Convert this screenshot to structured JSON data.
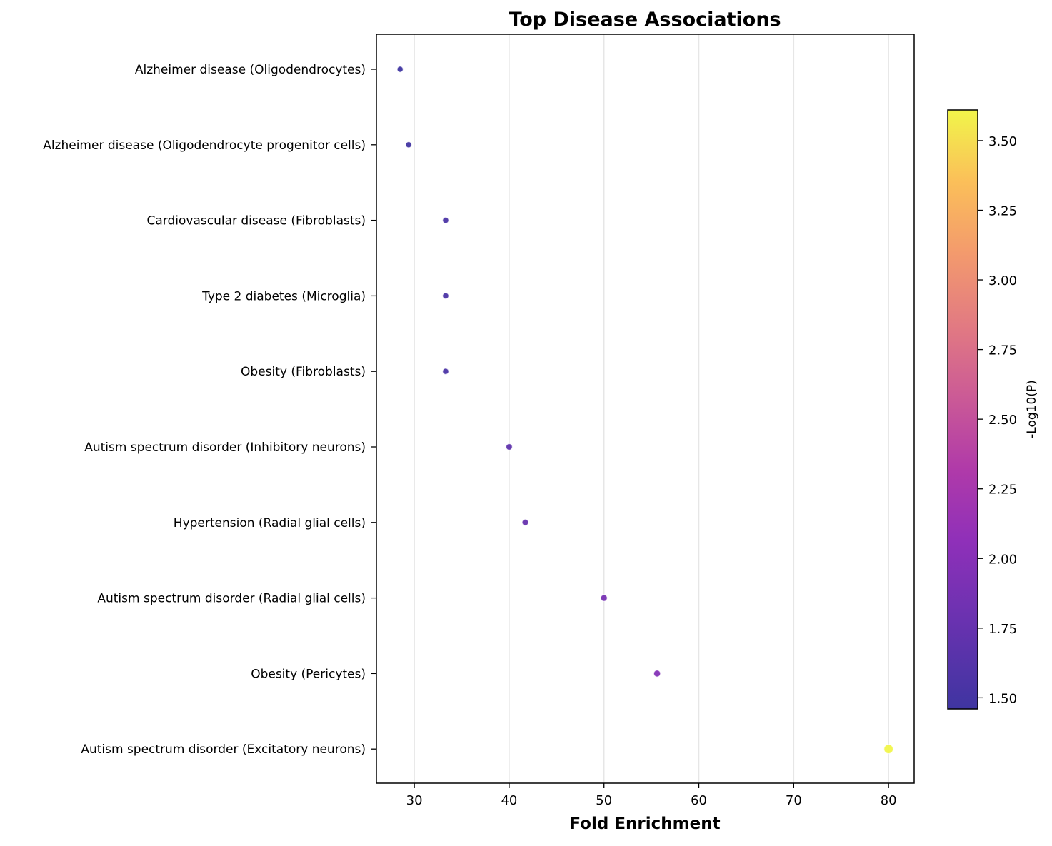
{
  "chart_data": {
    "type": "scatter",
    "title": "Top Disease Associations",
    "xlabel": "Fold Enrichment",
    "ylabel": "",
    "xlim": [
      26,
      82.7
    ],
    "xticks": [
      30,
      40,
      50,
      60,
      70,
      80
    ],
    "grid": "vertical",
    "colorbar": {
      "label": "-Log10(P)",
      "colormap": "plasma",
      "range": [
        1.46,
        3.61
      ],
      "ticks": [
        "1.50",
        "1.75",
        "2.00",
        "2.25",
        "2.50",
        "2.75",
        "3.00",
        "3.25",
        "3.50"
      ],
      "tick_values": [
        1.5,
        1.75,
        2.0,
        2.25,
        2.5,
        2.75,
        3.0,
        3.25,
        3.5
      ]
    },
    "categories": [
      "Alzheimer disease (Oligodendrocytes)",
      "Alzheimer disease (Oligodendrocyte progenitor cells)",
      "Cardiovascular disease (Fibroblasts)",
      "Type 2 diabetes (Microglia)",
      "Obesity (Fibroblasts)",
      "Autism spectrum disorder (Inhibitory neurons)",
      "Hypertension (Radial glial cells)",
      "Autism spectrum disorder (Radial glial cells)",
      "Obesity (Pericytes)",
      "Autism spectrum disorder (Excitatory neurons)"
    ],
    "points": [
      {
        "category": "Alzheimer disease (Oligodendrocytes)",
        "x": 28.5,
        "neglog10p": 1.46
      },
      {
        "category": "Alzheimer disease (Oligodendrocyte progenitor cells)",
        "x": 29.4,
        "neglog10p": 1.48
      },
      {
        "category": "Cardiovascular disease (Fibroblasts)",
        "x": 33.3,
        "neglog10p": 1.55
      },
      {
        "category": "Type 2 diabetes (Microglia)",
        "x": 33.3,
        "neglog10p": 1.55
      },
      {
        "category": "Obesity (Fibroblasts)",
        "x": 33.3,
        "neglog10p": 1.55
      },
      {
        "category": "Autism spectrum disorder (Inhibitory neurons)",
        "x": 40.0,
        "neglog10p": 1.7
      },
      {
        "category": "Hypertension (Radial glial cells)",
        "x": 41.7,
        "neglog10p": 1.75
      },
      {
        "category": "Autism spectrum disorder (Radial glial cells)",
        "x": 50.0,
        "neglog10p": 1.88
      },
      {
        "category": "Obesity (Pericytes)",
        "x": 55.6,
        "neglog10p": 1.98
      },
      {
        "category": "Autism spectrum disorder (Excitatory neurons)",
        "x": 80.0,
        "neglog10p": 3.61
      }
    ]
  }
}
